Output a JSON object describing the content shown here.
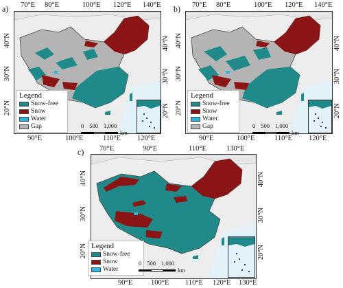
{
  "colors": {
    "snow_free": "#1f8a89",
    "snow": "#8b1414",
    "water": "#2ab7e6",
    "gap": "#b4b4b4",
    "land": "#eeeeee",
    "sea": "#e3f2f8"
  },
  "legend": {
    "title": "Legend",
    "items_ab": [
      {
        "label": "Snow-free",
        "color_key": "snow_free"
      },
      {
        "label": "Snow",
        "color_key": "snow"
      },
      {
        "label": "Water",
        "color_key": "water"
      },
      {
        "label": "Gap",
        "color_key": "gap"
      }
    ],
    "items_c": [
      {
        "label": "Snow-free",
        "color_key": "snow_free"
      },
      {
        "label": "Snow",
        "color_key": "snow"
      },
      {
        "label": "Water",
        "color_key": "water"
      }
    ]
  },
  "scale_bar": {
    "labels": [
      "0",
      "500",
      "1,000"
    ],
    "unit": "km"
  },
  "panels": [
    {
      "id": "a",
      "label": "a)",
      "top_ticks": [
        "70°E",
        "80°E",
        "100°E",
        "120°E",
        "140°E"
      ],
      "bottom_ticks": [
        "90°E",
        "100°E",
        "110°E",
        "120°E"
      ],
      "left_ticks": [
        "40°N",
        "30°N",
        "20°N"
      ],
      "right_ticks": [
        "40°N",
        "30°N",
        "20°N"
      ]
    },
    {
      "id": "b",
      "label": "b)",
      "top_ticks": [
        "70°E",
        "80°E",
        "100°E",
        "120°E",
        "140°E"
      ],
      "bottom_ticks": [
        "90°E",
        "100°E",
        "110°E",
        "120°E"
      ],
      "left_ticks": [
        "40°N",
        "30°N",
        "20°N"
      ],
      "right_ticks": [
        "40°N",
        "30°N",
        "20°N"
      ]
    },
    {
      "id": "c",
      "label": "c)",
      "top_ticks": [
        "70°E",
        "90°E",
        "110°E",
        "130°E"
      ],
      "bottom_ticks": [
        "90°E",
        "100°E",
        "110°E",
        "120°E",
        "130°E"
      ],
      "left_ticks": [
        "40°N",
        "30°N",
        "20°N"
      ],
      "right_ticks": [
        "40°N",
        "30°N",
        "20°N"
      ]
    }
  ]
}
